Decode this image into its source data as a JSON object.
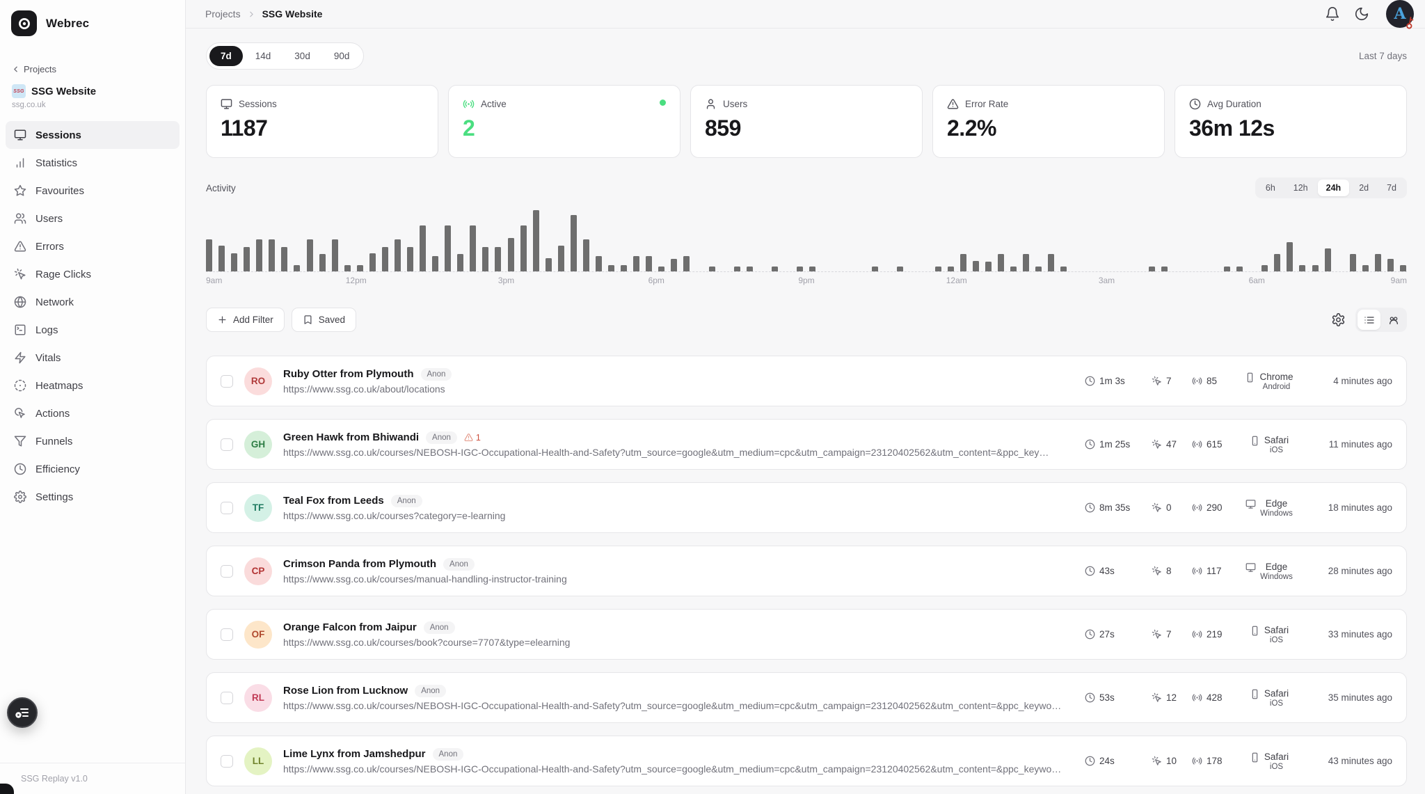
{
  "app": {
    "name": "Webrec",
    "version_label": "SSG Replay v1.0"
  },
  "sidebar": {
    "back_label": "Projects",
    "project": {
      "name": "SSG Website",
      "domain": "ssg.co.uk",
      "favicon_text": "SSG"
    },
    "items": [
      {
        "label": "Sessions",
        "icon": "monitor",
        "active": true
      },
      {
        "label": "Statistics",
        "icon": "bar-chart",
        "active": false
      },
      {
        "label": "Favourites",
        "icon": "star",
        "active": false
      },
      {
        "label": "Users",
        "icon": "users",
        "active": false
      },
      {
        "label": "Errors",
        "icon": "alert-triangle",
        "active": false
      },
      {
        "label": "Rage Clicks",
        "icon": "pointer-spark",
        "active": false
      },
      {
        "label": "Network",
        "icon": "globe",
        "active": false
      },
      {
        "label": "Logs",
        "icon": "terminal",
        "active": false
      },
      {
        "label": "Vitals",
        "icon": "zap",
        "active": false
      },
      {
        "label": "Heatmaps",
        "icon": "heatmap",
        "active": false
      },
      {
        "label": "Actions",
        "icon": "pointer-arc",
        "active": false
      },
      {
        "label": "Funnels",
        "icon": "funnel",
        "active": false
      },
      {
        "label": "Efficiency",
        "icon": "clock",
        "active": false
      },
      {
        "label": "Settings",
        "icon": "gear",
        "active": false
      }
    ]
  },
  "header": {
    "breadcrumb_parent": "Projects",
    "breadcrumb_current": "SSG Website",
    "avatar_letter": "A"
  },
  "toolbar": {
    "ranges": [
      "7d",
      "14d",
      "30d",
      "90d"
    ],
    "active_range": "7d",
    "period_label": "Last 7 days"
  },
  "stats": [
    {
      "label": "Sessions",
      "value": "1187",
      "icon": "monitor"
    },
    {
      "label": "Active",
      "value": "2",
      "icon": "signal",
      "value_color": "#4ade80",
      "live_dot": true
    },
    {
      "label": "Users",
      "value": "859",
      "icon": "user"
    },
    {
      "label": "Error Rate",
      "value": "2.2%",
      "icon": "alert-triangle"
    },
    {
      "label": "Avg Duration",
      "value": "36m 12s",
      "icon": "clock"
    }
  ],
  "activity": {
    "title": "Activity",
    "ranges": [
      "6h",
      "12h",
      "24h",
      "2d",
      "7d"
    ],
    "active_range": "24h"
  },
  "chart_data": {
    "type": "bar",
    "title": "Activity",
    "x_ticks": [
      "9am",
      "12pm",
      "3pm",
      "6pm",
      "9pm",
      "12am",
      "3am",
      "6am",
      "9am"
    ],
    "values": [
      52,
      42,
      30,
      40,
      52,
      52,
      40,
      10,
      52,
      28,
      52,
      10,
      10,
      30,
      40,
      52,
      40,
      75,
      25,
      75,
      28,
      75,
      40,
      40,
      55,
      75,
      100,
      22,
      42,
      92,
      52,
      25,
      10,
      10,
      25,
      25,
      8,
      20,
      25,
      0,
      8,
      0,
      8,
      8,
      0,
      8,
      0,
      8,
      8,
      0,
      0,
      0,
      0,
      8,
      0,
      8,
      0,
      0,
      8,
      8,
      28,
      17,
      16,
      28,
      8,
      28,
      8,
      28,
      8,
      0,
      0,
      0,
      0,
      0,
      0,
      8,
      8,
      0,
      0,
      0,
      0,
      8,
      8,
      0,
      10,
      28,
      48,
      10,
      10,
      38,
      0,
      28,
      10,
      28,
      20,
      10
    ],
    "bar_color": "#6e6e6e",
    "baseline_style": "dashed",
    "ylim": [
      0,
      100
    ]
  },
  "filters": {
    "add_label": "Add Filter",
    "saved_label": "Saved"
  },
  "sessions": [
    {
      "initials": "RO",
      "avatar_bg": "#fbdcdc",
      "avatar_fg": "#b03a3a",
      "name": "Ruby Otter from Plymouth",
      "badge": "Anon",
      "errors": "",
      "url": "https://www.ssg.co.uk/about/locations",
      "duration": "1m 3s",
      "clicks": "7",
      "events": "85",
      "device": "mobile",
      "browser": "Chrome",
      "os": "Android",
      "time_ago": "4 minutes ago"
    },
    {
      "initials": "GH",
      "avatar_bg": "#d5efd9",
      "avatar_fg": "#2e7d45",
      "name": "Green Hawk from Bhiwandi",
      "badge": "Anon",
      "errors": "1",
      "url": "https://www.ssg.co.uk/courses/NEBOSH-IGC-Occupational-Health-and-Safety?utm_source=google&utm_medium=cpc&utm_campaign=23120402562&utm_content=&ppc_key…",
      "duration": "1m 25s",
      "clicks": "47",
      "events": "615",
      "device": "mobile",
      "browser": "Safari",
      "os": "iOS",
      "time_ago": "11 minutes ago"
    },
    {
      "initials": "TF",
      "avatar_bg": "#d4f1e6",
      "avatar_fg": "#1f7a60",
      "name": "Teal Fox from Leeds",
      "badge": "Anon",
      "errors": "",
      "url": "https://www.ssg.co.uk/courses?category=e-learning",
      "duration": "8m 35s",
      "clicks": "0",
      "events": "290",
      "device": "desktop",
      "browser": "Edge",
      "os": "Windows",
      "time_ago": "18 minutes ago"
    },
    {
      "initials": "CP",
      "avatar_bg": "#fadbdb",
      "avatar_fg": "#b23333",
      "name": "Crimson Panda from Plymouth",
      "badge": "Anon",
      "errors": "",
      "url": "https://www.ssg.co.uk/courses/manual-handling-instructor-training",
      "duration": "43s",
      "clicks": "8",
      "events": "117",
      "device": "desktop",
      "browser": "Edge",
      "os": "Windows",
      "time_ago": "28 minutes ago"
    },
    {
      "initials": "OF",
      "avatar_bg": "#fde6c9",
      "avatar_fg": "#b04a2e",
      "name": "Orange Falcon from Jaipur",
      "badge": "Anon",
      "errors": "",
      "url": "https://www.ssg.co.uk/courses/book?course=7707&type=elearning",
      "duration": "27s",
      "clicks": "7",
      "events": "219",
      "device": "mobile",
      "browser": "Safari",
      "os": "iOS",
      "time_ago": "33 minutes ago"
    },
    {
      "initials": "RL",
      "avatar_bg": "#fadde6",
      "avatar_fg": "#c13a55",
      "name": "Rose Lion from Lucknow",
      "badge": "Anon",
      "errors": "",
      "url": "https://www.ssg.co.uk/courses/NEBOSH-IGC-Occupational-Health-and-Safety?utm_source=google&utm_medium=cpc&utm_campaign=23120402562&utm_content=&ppc_keywo…",
      "duration": "53s",
      "clicks": "12",
      "events": "428",
      "device": "mobile",
      "browser": "Safari",
      "os": "iOS",
      "time_ago": "35 minutes ago"
    },
    {
      "initials": "LL",
      "avatar_bg": "#e4f3c3",
      "avatar_fg": "#70832c",
      "name": "Lime Lynx from Jamshedpur",
      "badge": "Anon",
      "errors": "",
      "url": "https://www.ssg.co.uk/courses/NEBOSH-IGC-Occupational-Health-and-Safety?utm_source=google&utm_medium=cpc&utm_campaign=23120402562&utm_content=&ppc_keywo…",
      "duration": "24s",
      "clicks": "10",
      "events": "178",
      "device": "mobile",
      "browser": "Safari",
      "os": "iOS",
      "time_ago": "43 minutes ago"
    }
  ]
}
